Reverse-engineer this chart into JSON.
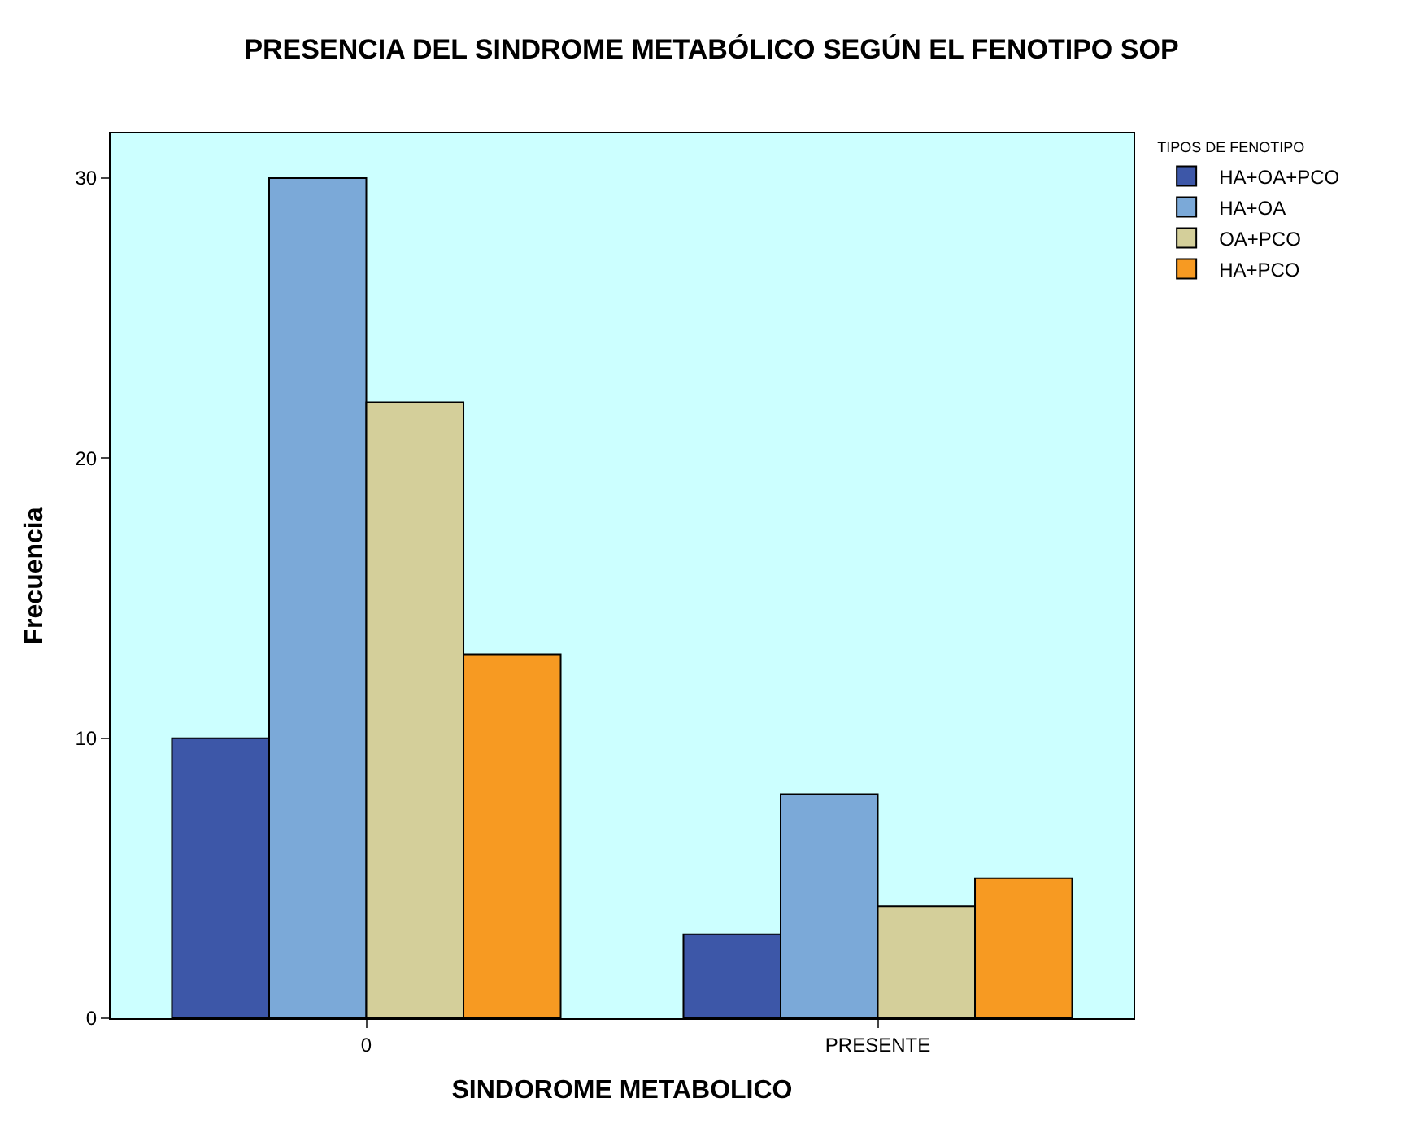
{
  "chart_data": {
    "type": "bar",
    "title": "PRESENCIA DEL SINDROME METABÓLICO SEGÚN EL FENOTIPO SOP",
    "xlabel": "SINDOROME METABOLICO",
    "ylabel": "Frecuencia",
    "legend_title": "TIPOS DE FENOTIPO",
    "categories": [
      "0",
      "PRESENTE"
    ],
    "series": [
      {
        "name": "HA+OA+PCO",
        "color": "#3d57a8",
        "values": [
          10,
          3
        ]
      },
      {
        "name": "HA+OA",
        "color": "#7ba9d8",
        "values": [
          30,
          8
        ]
      },
      {
        "name": "OA+PCO",
        "color": "#d4cf9a",
        "values": [
          22,
          4
        ]
      },
      {
        "name": "HA+PCO",
        "color": "#f79a22",
        "values": [
          13,
          5
        ]
      }
    ],
    "ylim": [
      0,
      31.6
    ],
    "yticks": [
      0,
      10,
      20,
      30
    ],
    "grid": false,
    "legend": "top right"
  }
}
